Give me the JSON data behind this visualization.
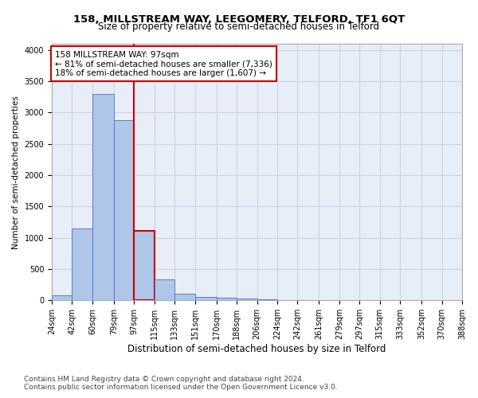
{
  "title": "158, MILLSTREAM WAY, LEEGOMERY, TELFORD, TF1 6QT",
  "subtitle": "Size of property relative to semi-detached houses in Telford",
  "xlabel": "Distribution of semi-detached houses by size in Telford",
  "ylabel": "Number of semi-detached properties",
  "footnote1": "Contains HM Land Registry data © Crown copyright and database right 2024.",
  "footnote2": "Contains public sector information licensed under the Open Government Licence v3.0.",
  "annotation_title": "158 MILLSTREAM WAY: 97sqm",
  "annotation_line1": "← 81% of semi-detached houses are smaller (7,336)",
  "annotation_line2": "18% of semi-detached houses are larger (1,607) →",
  "property_size": 97,
  "bar_edges": [
    24,
    42,
    60,
    79,
    97,
    115,
    133,
    151,
    170,
    188,
    206,
    224,
    242,
    261,
    279,
    297,
    315,
    333,
    352,
    370,
    388
  ],
  "bar_values": [
    80,
    1150,
    3300,
    2880,
    1110,
    330,
    100,
    60,
    40,
    30,
    20,
    0,
    0,
    0,
    0,
    0,
    0,
    0,
    0,
    0
  ],
  "bar_color": "#aec6e8",
  "bar_edge_color": "#4472c4",
  "highlight_bar_index": 4,
  "highlight_color": "#cc0000",
  "vline_color": "#cc0000",
  "annotation_box_color": "#cc0000",
  "ylim": [
    0,
    4100
  ],
  "yticks": [
    0,
    500,
    1000,
    1500,
    2000,
    2500,
    3000,
    3500,
    4000
  ],
  "grid_color": "#c8d4e8",
  "background_color": "#e8eef8",
  "title_fontsize": 9.5,
  "subtitle_fontsize": 8.5,
  "xlabel_fontsize": 8.5,
  "ylabel_fontsize": 7.5,
  "tick_fontsize": 7,
  "annotation_fontsize": 7.5,
  "footnote_fontsize": 6.5
}
